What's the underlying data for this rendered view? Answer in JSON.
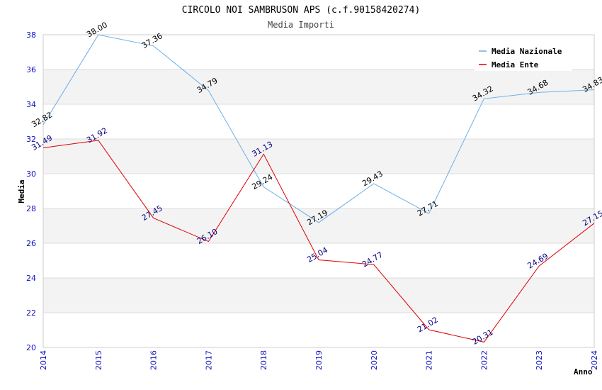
{
  "chart_data": {
    "type": "line",
    "title": "CIRCOLO NOI SAMBRUSON APS (c.f.90158420274)",
    "subtitle": "Media Importi",
    "xlabel": "Anno",
    "ylabel": "Media",
    "ylim": [
      20,
      38
    ],
    "yticks": [
      "20",
      "22",
      "24",
      "26",
      "28",
      "30",
      "32",
      "34",
      "36",
      "38"
    ],
    "x": [
      "2014",
      "2015",
      "2016",
      "2017",
      "2018",
      "2019",
      "2020",
      "2021",
      "2022",
      "2023",
      "2024"
    ],
    "grid": true,
    "legend_position": "top-right",
    "series": [
      {
        "name": "Media Nazionale",
        "color": "#6aaee8",
        "label_color": "#000000",
        "values": [
          32.82,
          38.0,
          37.36,
          34.79,
          29.24,
          27.19,
          29.43,
          27.71,
          34.32,
          34.68,
          34.83
        ],
        "labels": [
          "32.82",
          "38.00",
          "37.36",
          "34.79",
          "29.24",
          "27.19",
          "29.43",
          "27.71",
          "34.32",
          "34.68",
          "34.83"
        ]
      },
      {
        "name": "Media Ente",
        "color": "#e00000",
        "label_color": "#000080",
        "values": [
          31.49,
          31.92,
          27.45,
          26.1,
          31.13,
          25.04,
          24.77,
          21.02,
          20.31,
          24.69,
          27.15
        ],
        "labels": [
          "31.49",
          "31.92",
          "27.45",
          "26.10",
          "31.13",
          "25.04",
          "24.77",
          "21.02",
          "20.31",
          "24.69",
          "27.15"
        ]
      }
    ]
  }
}
